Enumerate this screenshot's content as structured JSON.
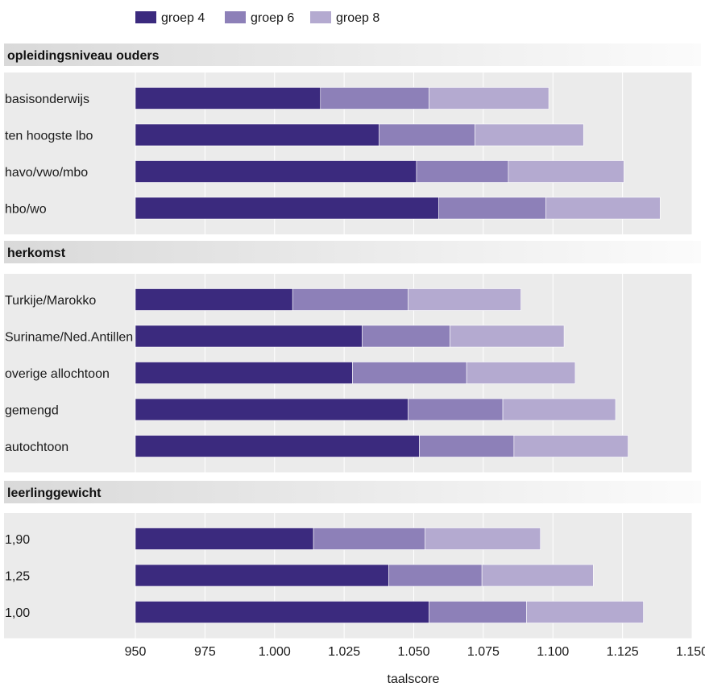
{
  "chart_data": {
    "type": "bar",
    "orientation": "horizontal",
    "stacked": true,
    "xlabel": "taalscore",
    "xlim": [
      950,
      1150
    ],
    "x_ticks": [
      "950",
      "975",
      "1.000",
      "1.025",
      "1.050",
      "1.075",
      "1.100",
      "1.125",
      "1.150"
    ],
    "grid": true,
    "legend_position": "top-left",
    "legend": [
      {
        "name": "groep 4",
        "color": "#3b2a7e"
      },
      {
        "name": "groep 6",
        "color": "#8d80b8"
      },
      {
        "name": "groep 8",
        "color": "#b4aad0"
      }
    ],
    "groups": [
      {
        "title": "opleidingsniveau ouders",
        "categories": [
          {
            "label": "basisonderwijs",
            "cumulative": [
              1016.5,
              1055.5,
              1098.5
            ]
          },
          {
            "label": "ten hoogste lbo",
            "cumulative": [
              1037.5,
              1072,
              1111
            ]
          },
          {
            "label": "havo/vwo/mbo",
            "cumulative": [
              1051,
              1084,
              1125.5
            ]
          },
          {
            "label": "hbo/wo",
            "cumulative": [
              1059,
              1097.5,
              1138.5
            ]
          }
        ]
      },
      {
        "title": "herkomst",
        "categories": [
          {
            "label": "Turkije/Marokko",
            "cumulative": [
              1006.5,
              1048,
              1088.5
            ]
          },
          {
            "label": "Suriname/Ned.Antillen",
            "cumulative": [
              1031.5,
              1063,
              1104
            ]
          },
          {
            "label": "overige allochtoon",
            "cumulative": [
              1028,
              1069,
              1108
            ]
          },
          {
            "label": "gemengd",
            "cumulative": [
              1048,
              1082,
              1122.5
            ]
          },
          {
            "label": "autochtoon",
            "cumulative": [
              1052,
              1086,
              1127
            ]
          }
        ]
      },
      {
        "title": "leerlinggewicht",
        "categories": [
          {
            "label": "1,90",
            "cumulative": [
              1014,
              1054,
              1095.5
            ]
          },
          {
            "label": "1,25",
            "cumulative": [
              1041,
              1074.5,
              1114.5
            ]
          },
          {
            "label": "1,00",
            "cumulative": [
              1055.5,
              1090.5,
              1132.5
            ]
          }
        ]
      }
    ]
  }
}
